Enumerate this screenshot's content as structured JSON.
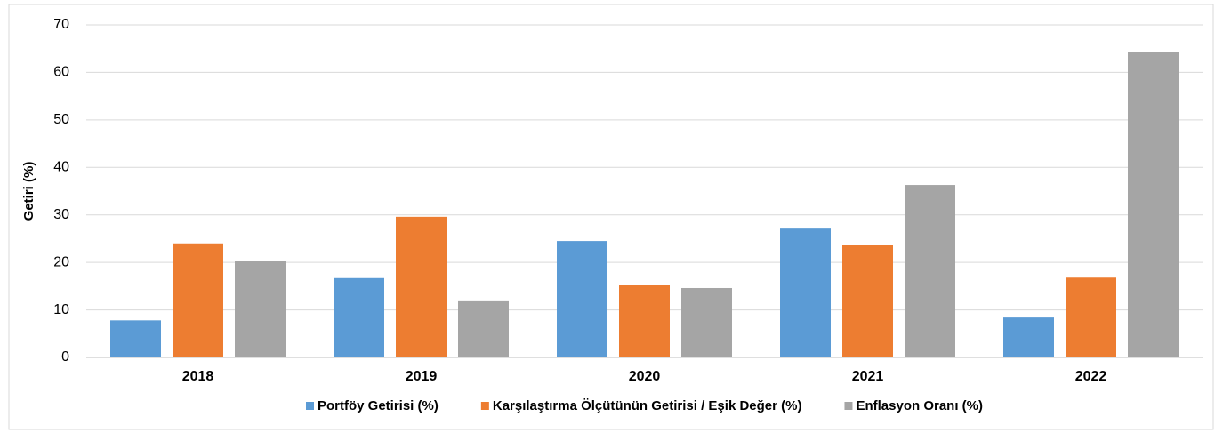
{
  "chart_data": {
    "type": "bar",
    "y_label": "Getiri (%)",
    "categories": [
      "2018",
      "2019",
      "2020",
      "2021",
      "2022"
    ],
    "series": [
      {
        "name": "Portföy Getirisi (%)",
        "color": "#5b9bd5",
        "values": [
          7.8,
          16.7,
          24.5,
          27.3,
          8.4
        ]
      },
      {
        "name": "Karşılaştırma Ölçütünün Getirisi / Eşik Değer (%)",
        "color": "#ed7d31",
        "values": [
          24.0,
          29.6,
          15.2,
          23.6,
          16.8
        ]
      },
      {
        "name": "Enflasyon Oranı (%)",
        "color": "#a5a5a5",
        "values": [
          20.4,
          12.0,
          14.6,
          36.3,
          64.2
        ]
      }
    ],
    "ylim": [
      0,
      70
    ],
    "yticks": [
      0,
      10,
      20,
      30,
      40,
      50,
      60,
      70
    ],
    "grid": true,
    "legend": "bottom"
  }
}
